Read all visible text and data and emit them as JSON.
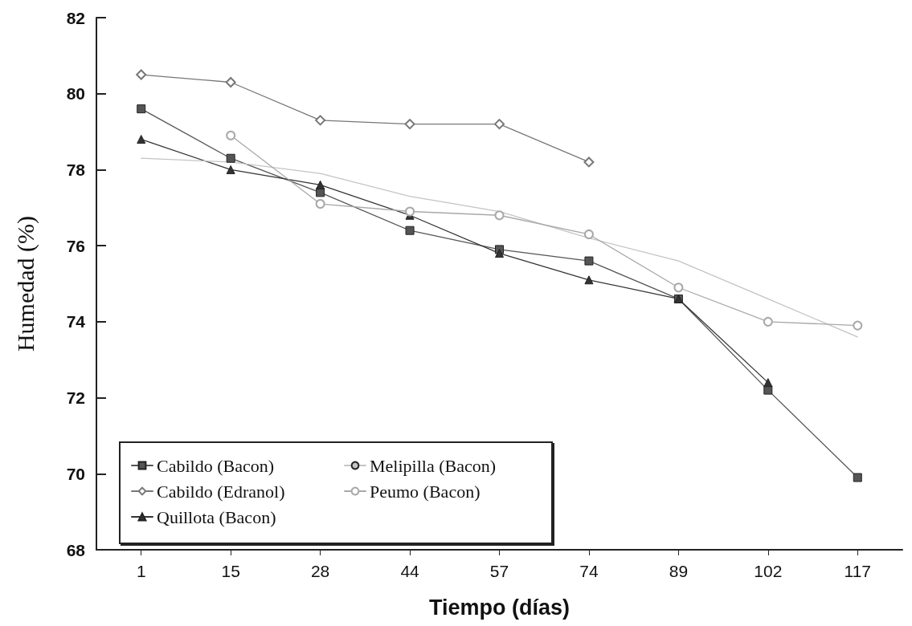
{
  "chart_data": {
    "type": "line",
    "xlabel": "Tiempo (días)",
    "ylabel": "Humedad (%)",
    "categories": [
      "1",
      "15",
      "28",
      "44",
      "57",
      "74",
      "89",
      "102",
      "117"
    ],
    "ylim": [
      68,
      82
    ],
    "yticks": [
      68,
      70,
      72,
      74,
      76,
      78,
      80,
      82
    ],
    "grid": false,
    "legend": "bottom left",
    "line_style": "solid",
    "series": [
      {
        "name": "Cabildo (Bacon)",
        "color": "#555555",
        "marker": "square",
        "values": [
          79.6,
          78.3,
          77.4,
          76.4,
          75.9,
          75.6,
          74.6,
          72.2,
          69.9
        ]
      },
      {
        "name": "Cabildo (Edranol)",
        "color": "#777777",
        "marker": "diamond",
        "values": [
          80.5,
          80.3,
          79.3,
          79.2,
          79.2,
          78.2,
          null,
          null,
          null
        ]
      },
      {
        "name": "Quillota (Bacon)",
        "color": "#333333",
        "marker": "triangle",
        "values": [
          78.8,
          78.0,
          77.6,
          76.8,
          75.8,
          75.1,
          74.6,
          72.4,
          null
        ]
      },
      {
        "name": "Melipilla (Bacon)",
        "color": "#c4c4c4",
        "marker": "none",
        "values": [
          78.3,
          78.2,
          77.9,
          77.3,
          76.9,
          76.2,
          75.6,
          74.6,
          73.6
        ]
      },
      {
        "name": "Peumo (Bacon)",
        "color": "#a8a8a8",
        "marker": "circle",
        "values": [
          null,
          78.9,
          77.1,
          76.9,
          76.8,
          76.3,
          74.9,
          74.0,
          73.9
        ]
      }
    ]
  }
}
